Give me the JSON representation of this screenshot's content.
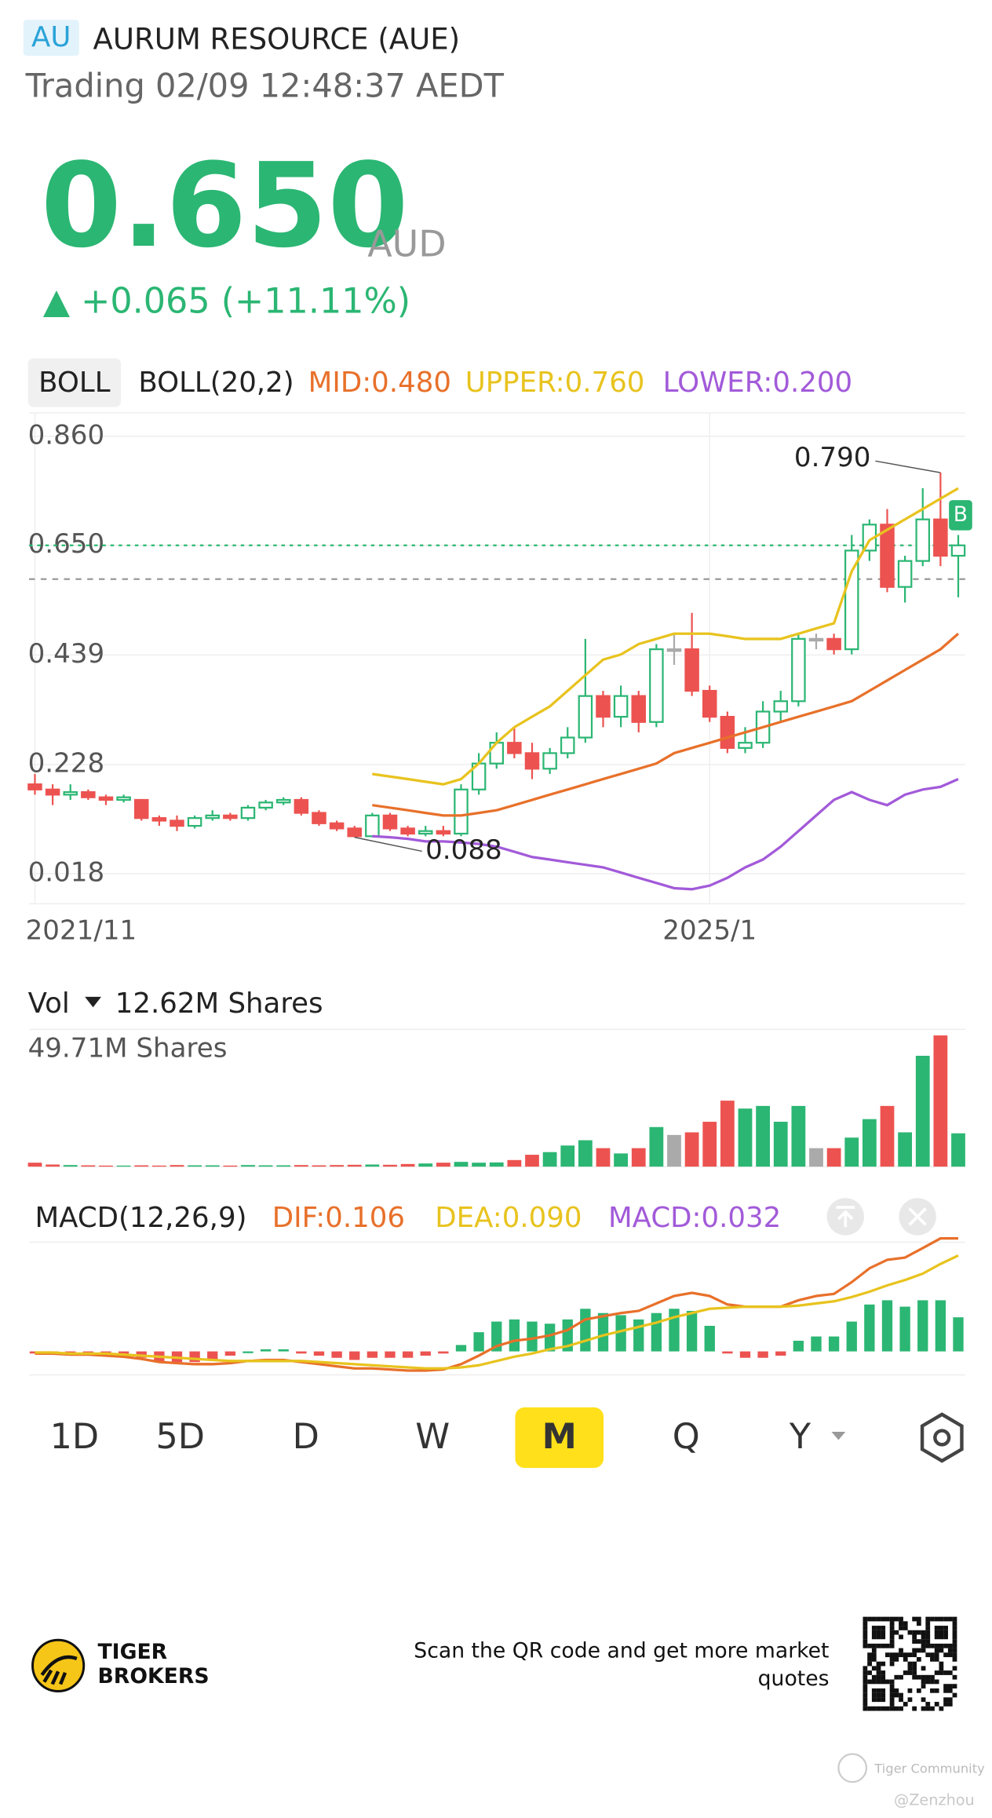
{
  "header": {
    "badge": "AU",
    "title": "AURUM RESOURCE (AUE)",
    "status": "Trading 02/09 12:48:37 AEDT",
    "price": "0.650",
    "currency": "AUD",
    "change": "▲ +0.065 (+11.11%)"
  },
  "boll_header": {
    "button": "BOLL",
    "name": "BOLL(20,2)"
  },
  "tabs": {
    "items": [
      "1D",
      "5D",
      "D",
      "W",
      "M",
      "Q",
      "Y"
    ],
    "active": "M"
  },
  "footer": {
    "brand": [
      "TIGER",
      "BROKERS"
    ],
    "scan": [
      "Scan the QR code and get more market",
      "quotes"
    ],
    "watermark": "Tiger Community",
    "author": "@Zenzhou"
  },
  "chart_data": [
    {
      "type": "candlestick",
      "categories": [
        "2021/11",
        null,
        null,
        null,
        null,
        null,
        null,
        null,
        null,
        null,
        null,
        null,
        null,
        null,
        null,
        null,
        null,
        null,
        null,
        null,
        null,
        null,
        null,
        null,
        null,
        null,
        null,
        null,
        null,
        null,
        null,
        null,
        null,
        null,
        null,
        null,
        null,
        null,
        "2025/1",
        null,
        null,
        null,
        null,
        null,
        null,
        null,
        null,
        null,
        null,
        null,
        null,
        null,
        null
      ],
      "open": [
        0.19,
        0.18,
        0.17,
        0.175,
        0.165,
        0.16,
        0.16,
        0.125,
        0.12,
        0.11,
        0.125,
        0.13,
        0.125,
        0.145,
        0.155,
        0.16,
        0.135,
        0.115,
        0.105,
        0.09,
        0.13,
        0.105,
        0.095,
        0.1,
        0.095,
        0.18,
        0.23,
        0.27,
        0.25,
        0.22,
        0.25,
        0.28,
        0.36,
        0.32,
        0.36,
        0.31,
        0.45,
        0.45,
        0.37,
        0.32,
        0.26,
        0.27,
        0.33,
        0.35,
        0.47,
        0.47,
        0.45,
        0.64,
        0.69,
        0.57,
        0.62,
        0.7,
        0.63
      ],
      "high": [
        0.21,
        0.19,
        0.19,
        0.18,
        0.17,
        0.17,
        0.16,
        0.13,
        0.13,
        0.13,
        0.14,
        0.135,
        0.15,
        0.16,
        0.165,
        0.165,
        0.14,
        0.12,
        0.11,
        0.135,
        0.135,
        0.11,
        0.11,
        0.11,
        0.19,
        0.25,
        0.29,
        0.3,
        0.27,
        0.26,
        0.3,
        0.47,
        0.37,
        0.38,
        0.37,
        0.46,
        0.48,
        0.52,
        0.38,
        0.33,
        0.3,
        0.35,
        0.37,
        0.48,
        0.48,
        0.48,
        0.67,
        0.7,
        0.72,
        0.63,
        0.76,
        0.79,
        0.67
      ],
      "low": [
        0.17,
        0.15,
        0.16,
        0.16,
        0.15,
        0.155,
        0.12,
        0.11,
        0.1,
        0.105,
        0.12,
        0.12,
        0.12,
        0.14,
        0.15,
        0.13,
        0.11,
        0.1,
        0.088,
        0.088,
        0.1,
        0.09,
        0.09,
        0.09,
        0.09,
        0.17,
        0.22,
        0.24,
        0.2,
        0.21,
        0.24,
        0.27,
        0.3,
        0.3,
        0.29,
        0.3,
        0.42,
        0.36,
        0.31,
        0.25,
        0.25,
        0.26,
        0.31,
        0.34,
        0.45,
        0.44,
        0.44,
        0.62,
        0.56,
        0.54,
        0.61,
        0.61,
        0.55
      ],
      "close": [
        0.18,
        0.17,
        0.175,
        0.165,
        0.16,
        0.165,
        0.125,
        0.12,
        0.11,
        0.125,
        0.13,
        0.125,
        0.145,
        0.155,
        0.16,
        0.135,
        0.115,
        0.105,
        0.09,
        0.13,
        0.105,
        0.095,
        0.1,
        0.095,
        0.18,
        0.23,
        0.27,
        0.25,
        0.22,
        0.25,
        0.28,
        0.36,
        0.32,
        0.36,
        0.31,
        0.45,
        0.45,
        0.37,
        0.32,
        0.26,
        0.27,
        0.33,
        0.35,
        0.47,
        0.47,
        0.45,
        0.64,
        0.69,
        0.57,
        0.62,
        0.7,
        0.63,
        0.65
      ],
      "up_color": "#2bb673",
      "down_color": "#ec5350",
      "flat_color": "#aaaaaa",
      "series": [
        {
          "name": "MID:0.480",
          "color": "#e8702a",
          "values": [
            null,
            null,
            null,
            null,
            null,
            null,
            null,
            null,
            null,
            null,
            null,
            null,
            null,
            null,
            null,
            null,
            null,
            null,
            null,
            0.15,
            0.145,
            0.14,
            0.135,
            0.13,
            0.13,
            0.135,
            0.14,
            0.15,
            0.16,
            0.17,
            0.18,
            0.19,
            0.2,
            0.21,
            0.22,
            0.23,
            0.25,
            0.26,
            0.27,
            0.28,
            0.29,
            0.3,
            0.31,
            0.32,
            0.33,
            0.34,
            0.35,
            0.37,
            0.39,
            0.41,
            0.43,
            0.45,
            0.48
          ]
        },
        {
          "name": "UPPER:0.760",
          "color": "#e8c31e",
          "values": [
            null,
            null,
            null,
            null,
            null,
            null,
            null,
            null,
            null,
            null,
            null,
            null,
            null,
            null,
            null,
            null,
            null,
            null,
            null,
            0.21,
            0.205,
            0.2,
            0.195,
            0.19,
            0.2,
            0.23,
            0.27,
            0.3,
            0.32,
            0.34,
            0.37,
            0.4,
            0.43,
            0.44,
            0.46,
            0.47,
            0.48,
            0.48,
            0.48,
            0.475,
            0.47,
            0.47,
            0.47,
            0.48,
            0.49,
            0.5,
            0.6,
            0.66,
            0.68,
            0.7,
            0.72,
            0.74,
            0.76
          ]
        },
        {
          "name": "LOWER:0.200",
          "color": "#a25ad9",
          "values": [
            null,
            null,
            null,
            null,
            null,
            null,
            null,
            null,
            null,
            null,
            null,
            null,
            null,
            null,
            null,
            null,
            null,
            null,
            null,
            0.09,
            0.088,
            0.085,
            0.08,
            0.08,
            0.078,
            0.075,
            0.07,
            0.06,
            0.05,
            0.045,
            0.04,
            0.035,
            0.03,
            0.02,
            0.01,
            0,
            -0.01,
            -0.012,
            -0.005,
            0.01,
            0.03,
            0.045,
            0.07,
            0.1,
            0.13,
            0.16,
            0.175,
            0.16,
            0.15,
            0.17,
            0.18,
            0.185,
            0.2
          ]
        }
      ],
      "ylim": [
        -0.04,
        0.905
      ],
      "yticks": [
        {
          "value": 0.86,
          "label": "0.860"
        },
        {
          "value": 0.65,
          "label": "0.650"
        },
        {
          "value": 0.439,
          "label": "0.439"
        },
        {
          "value": 0.228,
          "label": "0.228"
        },
        {
          "value": 0.018,
          "label": "0.018"
        }
      ],
      "grid": true,
      "last_price": 0.65,
      "last_price_color": "#2bb673",
      "prev_close": 0.585,
      "annotations": [
        {
          "index": 51,
          "value": 0.79,
          "label": "0.790"
        },
        {
          "index": 18,
          "value": 0.088,
          "label": "0.088"
        }
      ],
      "marker_label": "B"
    },
    {
      "type": "bar",
      "title": "Vol",
      "current_label": "12.62M Shares",
      "values": [
        1.5,
        0.8,
        0.6,
        0.5,
        0.4,
        0.4,
        0.5,
        0.4,
        0.6,
        0.5,
        0.5,
        0.4,
        0.6,
        0.5,
        0.5,
        0.6,
        0.5,
        0.6,
        0.7,
        0.8,
        0.7,
        1.0,
        1.2,
        1.5,
        1.8,
        1.5,
        1.6,
        2.5,
        4.5,
        5.5,
        8,
        10,
        7,
        5,
        7,
        15,
        12,
        13,
        17,
        25,
        22,
        23,
        17,
        23,
        7,
        7,
        11,
        18,
        23,
        13,
        42,
        49.71,
        12.62
      ],
      "ylim": [
        0,
        52
      ],
      "yticks": [
        {
          "value": 49.71,
          "label": "49.71M Shares"
        }
      ]
    },
    {
      "type": "macd",
      "title": "MACD(12,26,9)",
      "up_color": "#2bb673",
      "down_color": "#ec5350",
      "series": [
        {
          "name": "DIF:0.106",
          "color": "#e8702a",
          "values": [
            -0.002,
            -0.002,
            -0.003,
            -0.003,
            -0.004,
            -0.005,
            -0.007,
            -0.01,
            -0.011,
            -0.012,
            -0.012,
            -0.011,
            -0.009,
            -0.008,
            -0.008,
            -0.01,
            -0.012,
            -0.014,
            -0.016,
            -0.016,
            -0.017,
            -0.018,
            -0.018,
            -0.017,
            -0.012,
            -0.004,
            0.005,
            0.01,
            0.012,
            0.015,
            0.02,
            0.03,
            0.033,
            0.036,
            0.038,
            0.045,
            0.052,
            0.055,
            0.052,
            0.044,
            0.042,
            0.042,
            0.042,
            0.048,
            0.052,
            0.054,
            0.065,
            0.078,
            0.086,
            0.088,
            0.097,
            0.106,
            0.106
          ]
        },
        {
          "name": "DEA:0.090",
          "color": "#e8c31e",
          "values": [
            -0.001,
            -0.001,
            -0.002,
            -0.002,
            -0.002,
            -0.003,
            -0.004,
            -0.005,
            -0.006,
            -0.007,
            -0.008,
            -0.009,
            -0.009,
            -0.009,
            -0.009,
            -0.009,
            -0.01,
            -0.011,
            -0.012,
            -0.013,
            -0.014,
            -0.015,
            -0.016,
            -0.016,
            -0.015,
            -0.013,
            -0.009,
            -0.005,
            -0.002,
            0.002,
            0.005,
            0.01,
            0.015,
            0.019,
            0.023,
            0.027,
            0.032,
            0.036,
            0.04,
            0.041,
            0.042,
            0.042,
            0.042,
            0.043,
            0.045,
            0.047,
            0.051,
            0.056,
            0.062,
            0.067,
            0.073,
            0.082,
            0.09
          ]
        },
        {
          "name": "MACD:0.032",
          "color": "#a25ad9",
          "histogram": true,
          "values": [
            -0.002,
            -0.002,
            -0.002,
            -0.002,
            -0.004,
            -0.004,
            -0.006,
            -0.01,
            -0.01,
            -0.01,
            -0.008,
            -0.004,
            0,
            0.002,
            0.002,
            -0.002,
            -0.004,
            -0.006,
            -0.008,
            -0.006,
            -0.006,
            -0.006,
            -0.004,
            -0.002,
            0.006,
            0.018,
            0.028,
            0.03,
            0.028,
            0.026,
            0.03,
            0.04,
            0.036,
            0.034,
            0.03,
            0.036,
            0.04,
            0.038,
            0.024,
            -0.002,
            -0.006,
            -0.006,
            -0.004,
            0.01,
            0.014,
            0.014,
            0.028,
            0.044,
            0.048,
            0.042,
            0.048,
            0.048,
            0.032
          ]
        }
      ],
      "ylim": [
        -0.022,
        0.109
      ]
    }
  ]
}
